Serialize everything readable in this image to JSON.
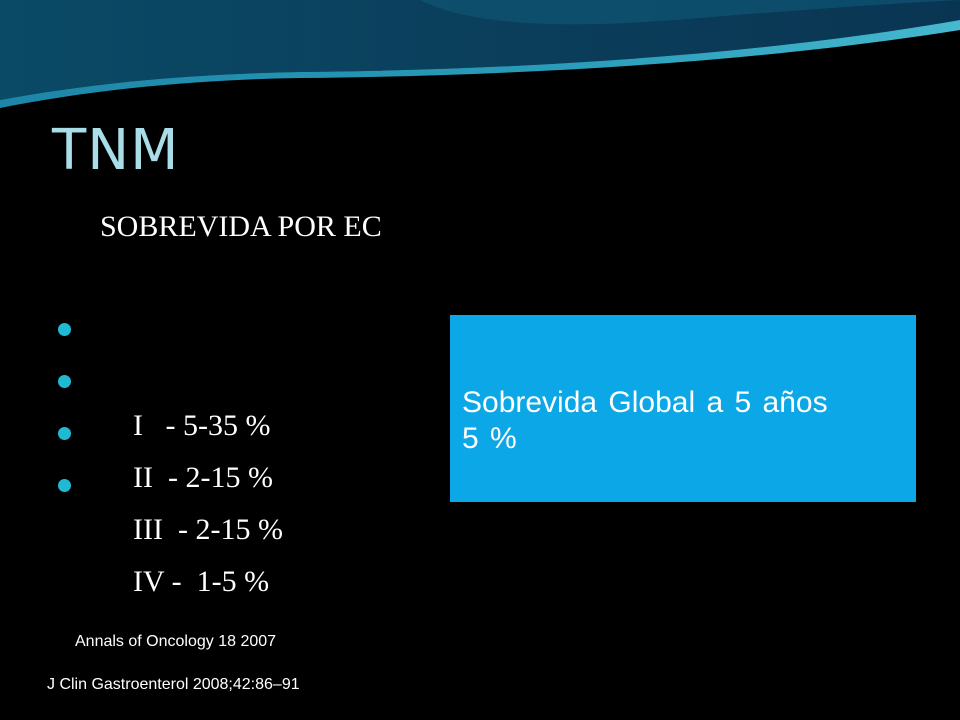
{
  "slide": {
    "title": "TNM",
    "subtitle": "SOBREVIDA POR EC",
    "stages": [
      {
        "label": "I   - 5-35 %"
      },
      {
        "label": "II  - 2-15 %"
      },
      {
        "label": "III  - 2-15 %"
      },
      {
        "label": "IV -  1-5 %"
      }
    ],
    "global_box": {
      "line1": "Sobrevida Global a 5 años",
      "line2": "5 %",
      "background": "#0ca7e6"
    },
    "references": [
      "Annals of Oncology 18  2007",
      "J Clin Gastroenterol 2008;42:86–91"
    ],
    "colors": {
      "background": "#000000",
      "title": "#a9dde8",
      "bullet": "#1fb9d4",
      "header_wave_dark": "#083a55",
      "header_wave_light": "#1e7fa0"
    },
    "icons": {
      "bullet": "circle-bullet-icon"
    }
  }
}
